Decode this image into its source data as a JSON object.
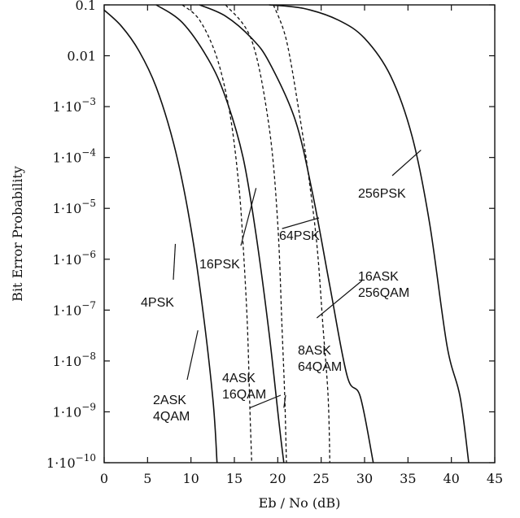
{
  "chart_data": {
    "type": "line",
    "xlabel": "Eb / No (dB)",
    "ylabel": "Bit Error Probability",
    "xlim": [
      0,
      45
    ],
    "ylim": [
      1e-10,
      0.1
    ],
    "yscale": "log",
    "grid": false,
    "x_ticks": [
      {
        "value": 0,
        "label": "0"
      },
      {
        "value": 5,
        "label": "5"
      },
      {
        "value": 10,
        "label": "10"
      },
      {
        "value": 15,
        "label": "15"
      },
      {
        "value": 20,
        "label": "20"
      },
      {
        "value": 25,
        "label": "25"
      },
      {
        "value": 30,
        "label": "30"
      },
      {
        "value": 35,
        "label": "35"
      },
      {
        "value": 40,
        "label": "40"
      },
      {
        "value": 45,
        "label": "45"
      }
    ],
    "y_ticks": [
      {
        "value": 0.1,
        "mantissa": "0.1",
        "exponent": ""
      },
      {
        "value": 0.01,
        "mantissa": "0.01",
        "exponent": ""
      },
      {
        "value": 0.001,
        "mantissa": "1·10",
        "exponent": "−3"
      },
      {
        "value": 0.0001,
        "mantissa": "1·10",
        "exponent": "−4"
      },
      {
        "value": 1e-05,
        "mantissa": "1·10",
        "exponent": "−5"
      },
      {
        "value": 1e-06,
        "mantissa": "1·10",
        "exponent": "−6"
      },
      {
        "value": 1e-07,
        "mantissa": "1·10",
        "exponent": "−7"
      },
      {
        "value": 1e-08,
        "mantissa": "1·10",
        "exponent": "−8"
      },
      {
        "value": 1e-09,
        "mantissa": "1·10",
        "exponent": "−9"
      },
      {
        "value": 1e-10,
        "mantissa": "1·10",
        "exponent": "−10"
      }
    ],
    "series": [
      {
        "label_lines": [
          "2ASK",
          "4QAM"
        ],
        "also": "4PSK",
        "style": "solid",
        "x": [
          0,
          2,
          4,
          6,
          8,
          9.6,
          11,
          12.5,
          13
        ],
        "y": [
          0.079,
          0.038,
          0.0125,
          0.0024,
          0.00019,
          1e-05,
          3e-07,
          2e-09,
          1e-10
        ]
      },
      {
        "label_lines": [
          "4ASK",
          "16QAM"
        ],
        "style": "solid",
        "x": [
          6,
          9,
          12,
          14,
          16,
          17.5,
          19,
          20.2,
          20.7
        ],
        "y": [
          0.1,
          0.045,
          0.0085,
          0.0015,
          0.0001,
          3e-06,
          3.5e-08,
          5e-10,
          1e-10
        ]
      },
      {
        "label_lines": [
          "16PSK"
        ],
        "style": "dashed",
        "x": [
          9,
          11,
          13,
          14.5,
          15.5,
          16,
          16.5,
          16.8,
          17
        ],
        "y": [
          0.1,
          0.05,
          0.009,
          0.0007,
          3e-05,
          2e-06,
          5e-08,
          1e-09,
          1e-10
        ]
      },
      {
        "label_lines": [
          "8ASK",
          "64QAM"
        ],
        "style": "solid",
        "x": [
          11,
          14,
          17,
          19,
          22,
          24,
          26,
          28,
          29.5,
          31
        ],
        "y": [
          0.1,
          0.06,
          0.022,
          0.0075,
          0.00055,
          2e-05,
          3e-07,
          5e-09,
          2e-09,
          1e-10
        ]
      },
      {
        "label_lines": [
          "64PSK"
        ],
        "style": "dashed",
        "x": [
          14,
          17,
          19,
          20,
          20.5,
          20.8,
          21
        ],
        "y": [
          0.1,
          0.02,
          0.0004,
          5e-06,
          4e-08,
          2e-09,
          1e-10
        ]
      },
      {
        "label_lines": [
          "16ASK",
          "256QAM"
        ],
        "style": "dashed",
        "x": [
          19.5,
          21,
          22.5,
          23.5,
          24.5,
          25.2,
          25.8,
          26
        ],
        "y": [
          0.1,
          0.02,
          0.0007,
          5e-05,
          2e-06,
          5e-08,
          2e-09,
          1e-10
        ]
      },
      {
        "label_lines": [
          "256PSK"
        ],
        "style": "solid",
        "x": [
          19,
          23,
          27,
          30,
          33,
          35.5,
          37.5,
          39.5,
          41,
          42
        ],
        "y": [
          0.1,
          0.085,
          0.05,
          0.022,
          0.004,
          0.00025,
          5e-06,
          2e-08,
          2e-09,
          1e-10
        ]
      }
    ],
    "annotations": [
      {
        "lines": [
          "2ASK",
          "4QAM"
        ],
        "leader_to": {
          "x": 10.8,
          "y": 4e-08
        }
      },
      {
        "lines": [
          "4PSK"
        ],
        "leader_to": {
          "x": 8.2,
          "y": 2e-06
        }
      },
      {
        "lines": [
          "16PSK"
        ],
        "leader_to": {
          "x": 17.5,
          "y": 2.5e-05
        }
      },
      {
        "lines": [
          "4ASK",
          "16QAM"
        ],
        "leader_to": {
          "x": 16.8,
          "y": 1.2e-09
        }
      },
      {
        "lines": [
          "64PSK"
        ],
        "leader_to": {
          "x": 20.5,
          "y": 4e-06
        }
      },
      {
        "lines": [
          "8ASK",
          "64QAM"
        ],
        "leader_to": {
          "x": 20.7,
          "y": 1.2e-09
        }
      },
      {
        "lines": [
          "16ASK",
          "256QAM"
        ],
        "leader_to": {
          "x": 24.5,
          "y": 7e-08
        }
      },
      {
        "lines": [
          "256PSK"
        ],
        "leader_to": {
          "x": 36.5,
          "y": 0.00014
        }
      }
    ]
  }
}
